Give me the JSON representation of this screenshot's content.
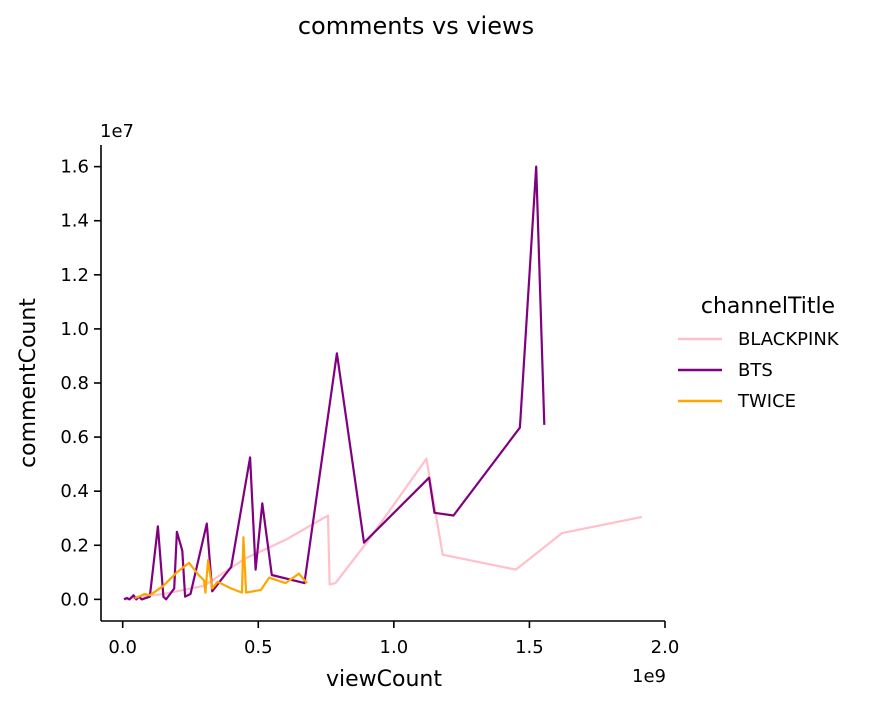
{
  "chart_data": {
    "type": "line",
    "title": "comments vs views",
    "xlabel": "viewCount",
    "ylabel": "commentCount",
    "x_offset_label": "1e9",
    "y_offset_label": "1e7",
    "x_scale": 1000000000,
    "y_scale": 10000000,
    "xlim": [
      -0.08,
      2.0
    ],
    "ylim": [
      -0.08,
      1.68
    ],
    "x_ticks": [
      0.0,
      0.5,
      1.0,
      1.5,
      2.0
    ],
    "x_tick_labels": [
      "0.0",
      "0.5",
      "1.0",
      "1.5",
      "2.0"
    ],
    "y_ticks": [
      0.0,
      0.2,
      0.4,
      0.6,
      0.8,
      1.0,
      1.2,
      1.4,
      1.6
    ],
    "y_tick_labels": [
      "0.0",
      "0.2",
      "0.4",
      "0.6",
      "0.8",
      "1.0",
      "1.2",
      "1.4",
      "1.6"
    ],
    "grid": false,
    "legend": {
      "title": "channelTitle",
      "placement": "right"
    },
    "series": [
      {
        "name": "BLACKPINK",
        "color": "#ffc0cb",
        "points": [
          [
            0.01,
            0.0
          ],
          [
            0.06,
            0.01
          ],
          [
            0.15,
            0.02
          ],
          [
            0.3,
            0.05
          ],
          [
            0.45,
            0.15
          ],
          [
            0.6,
            0.22
          ],
          [
            0.757,
            0.31
          ],
          [
            0.763,
            0.055
          ],
          [
            0.785,
            0.06
          ],
          [
            0.9,
            0.21
          ],
          [
            1.0,
            0.35
          ],
          [
            1.12,
            0.52
          ],
          [
            1.18,
            0.165
          ],
          [
            1.45,
            0.11
          ],
          [
            1.62,
            0.245
          ],
          [
            1.915,
            0.305
          ]
        ]
      },
      {
        "name": "BTS",
        "color": "#800080",
        "points": [
          [
            0.005,
            0.0
          ],
          [
            0.015,
            0.005
          ],
          [
            0.025,
            0.0
          ],
          [
            0.04,
            0.015
          ],
          [
            0.05,
            0.0
          ],
          [
            0.06,
            0.01
          ],
          [
            0.07,
            0.0
          ],
          [
            0.1,
            0.01
          ],
          [
            0.13,
            0.27
          ],
          [
            0.15,
            0.01
          ],
          [
            0.16,
            0.0
          ],
          [
            0.19,
            0.04
          ],
          [
            0.2,
            0.25
          ],
          [
            0.22,
            0.18
          ],
          [
            0.23,
            0.01
          ],
          [
            0.25,
            0.02
          ],
          [
            0.31,
            0.28
          ],
          [
            0.33,
            0.03
          ],
          [
            0.4,
            0.12
          ],
          [
            0.47,
            0.525
          ],
          [
            0.49,
            0.11
          ],
          [
            0.515,
            0.355
          ],
          [
            0.55,
            0.09
          ],
          [
            0.67,
            0.06
          ],
          [
            0.79,
            0.91
          ],
          [
            0.89,
            0.21
          ],
          [
            1.13,
            0.45
          ],
          [
            1.15,
            0.32
          ],
          [
            1.22,
            0.31
          ],
          [
            1.465,
            0.635
          ],
          [
            1.525,
            1.6
          ],
          [
            1.555,
            0.645
          ]
        ]
      },
      {
        "name": "TWICE",
        "color": "#ffa500",
        "points": [
          [
            0.045,
            0.005
          ],
          [
            0.06,
            0.01
          ],
          [
            0.08,
            0.02
          ],
          [
            0.1,
            0.015
          ],
          [
            0.15,
            0.05
          ],
          [
            0.2,
            0.1
          ],
          [
            0.245,
            0.135
          ],
          [
            0.28,
            0.09
          ],
          [
            0.3,
            0.07
          ],
          [
            0.305,
            0.025
          ],
          [
            0.315,
            0.145
          ],
          [
            0.33,
            0.04
          ],
          [
            0.35,
            0.065
          ],
          [
            0.4,
            0.04
          ],
          [
            0.44,
            0.025
          ],
          [
            0.445,
            0.23
          ],
          [
            0.455,
            0.025
          ],
          [
            0.51,
            0.035
          ],
          [
            0.54,
            0.08
          ],
          [
            0.6,
            0.06
          ],
          [
            0.65,
            0.095
          ],
          [
            0.68,
            0.06
          ]
        ]
      }
    ]
  }
}
